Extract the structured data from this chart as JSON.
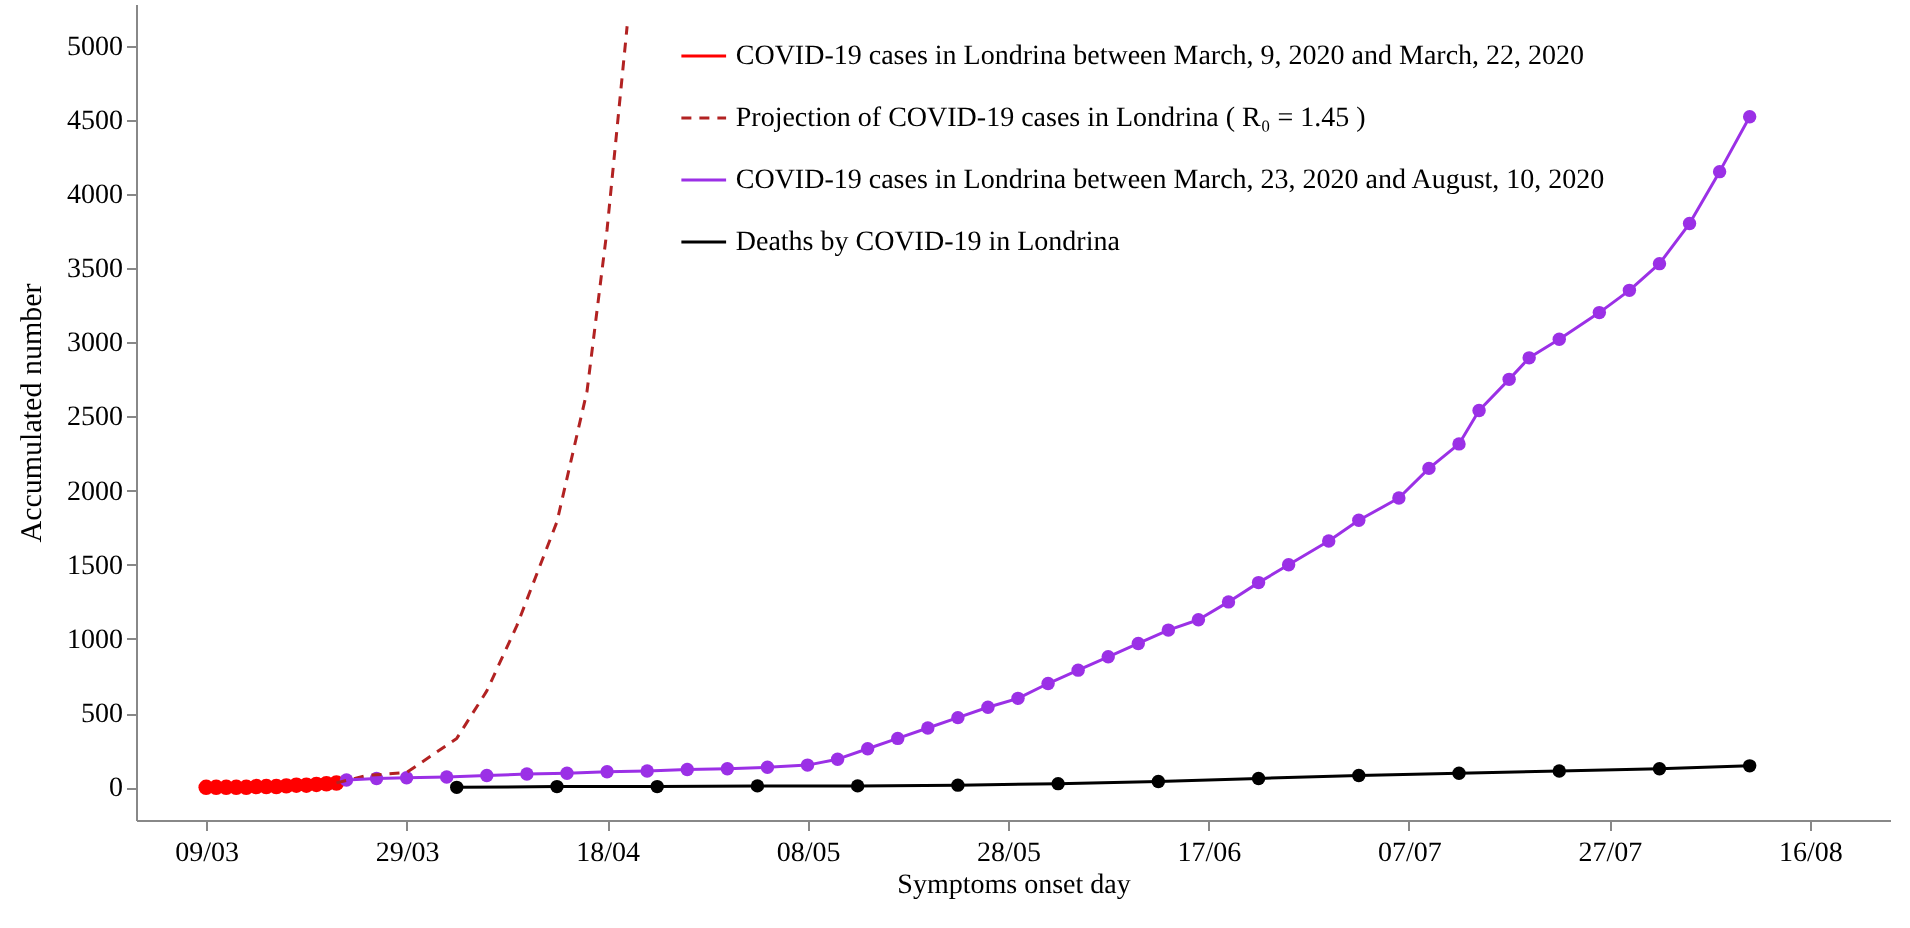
{
  "chart_data": {
    "type": "line",
    "xlabel": "Symptoms onset day",
    "ylabel": "Accumulated number",
    "xlim": [
      "--03-02",
      "--08-24"
    ],
    "xticks": [
      {
        "value": "--03-09",
        "label": "09/03"
      },
      {
        "value": "--03-29",
        "label": "29/03"
      },
      {
        "value": "--04-18",
        "label": "18/04"
      },
      {
        "value": "--05-08",
        "label": "08/05"
      },
      {
        "value": "--05-28",
        "label": "28/05"
      },
      {
        "value": "--06-17",
        "label": "17/06"
      },
      {
        "value": "--07-07",
        "label": "07/07"
      },
      {
        "value": "--07-27",
        "label": "27/07"
      },
      {
        "value": "--08-16",
        "label": "16/08"
      }
    ],
    "ylim": [
      -220,
      5280
    ],
    "yticks": [
      0,
      500,
      1000,
      1500,
      2000,
      2500,
      3000,
      3500,
      4000,
      4500,
      5000
    ],
    "grid": false,
    "legend": "top",
    "series": [
      {
        "name": "COVID-19 cases in Londrina between March, 9, 2020 and March, 22, 2020",
        "type": "scatter",
        "color": "#ff0000",
        "marker": "circle",
        "line_style": "solid",
        "x": [
          "--03-09",
          "--03-10",
          "--03-11",
          "--03-12",
          "--03-13",
          "--03-14",
          "--03-15",
          "--03-16",
          "--03-17",
          "--03-18",
          "--03-19",
          "--03-20",
          "--03-21",
          "--03-22"
        ],
        "values": [
          0,
          0,
          0,
          0,
          0,
          5,
          5,
          5,
          10,
          15,
          15,
          20,
          25,
          30
        ]
      },
      {
        "name": "Projection of COVID-19 cases in Londrina ( R₀ = 1.45 )",
        "color": "#b22222",
        "marker": "none",
        "line_style": "dashed",
        "x": [
          "--03-22",
          "--03-25",
          "--03-29",
          "--04-03",
          "--04-06",
          "--04-09",
          "--04-13",
          "--04-16",
          "--04-18",
          "--04-20"
        ],
        "values": [
          30,
          80,
          100,
          330,
          650,
          1090,
          1790,
          2670,
          3760,
          5130
        ]
      },
      {
        "name": "COVID-19 cases in Londrina between March, 23, 2020 and August, 10, 2020",
        "color": "#9b30e6",
        "marker": "circle",
        "line_style": "solid",
        "x": [
          "--03-23",
          "--03-26",
          "--03-29",
          "--04-02",
          "--04-06",
          "--04-10",
          "--04-14",
          "--04-18",
          "--04-22",
          "--04-26",
          "--04-30",
          "--05-04",
          "--05-08",
          "--05-11",
          "--05-14",
          "--05-17",
          "--05-20",
          "--05-23",
          "--05-26",
          "--05-29",
          "--06-01",
          "--06-04",
          "--06-07",
          "--06-10",
          "--06-13",
          "--06-16",
          "--06-19",
          "--06-22",
          "--06-25",
          "--06-29",
          "--07-02",
          "--07-06",
          "--07-09",
          "--07-12",
          "--07-14",
          "--07-17",
          "--07-19",
          "--07-22",
          "--07-26",
          "--07-29",
          "--08-01",
          "--08-04",
          "--08-07",
          "--08-10"
        ],
        "values": [
          50,
          60,
          65,
          70,
          80,
          90,
          95,
          105,
          110,
          120,
          125,
          135,
          150,
          190,
          260,
          330,
          400,
          470,
          540,
          600,
          700,
          790,
          880,
          970,
          1060,
          1130,
          1250,
          1380,
          1500,
          1660,
          1800,
          1950,
          2150,
          2315,
          2540,
          2750,
          2895,
          3020,
          3200,
          3350,
          3530,
          3800,
          4150,
          4520
        ]
      },
      {
        "name": "Deaths by COVID-19 in Londrina",
        "color": "#000000",
        "marker": "circle",
        "line_style": "solid",
        "x": [
          "--04-03",
          "--04-13",
          "--04-23",
          "--05-03",
          "--05-13",
          "--05-23",
          "--06-02",
          "--06-12",
          "--06-22",
          "--07-02",
          "--07-12",
          "--07-22",
          "--08-01",
          "--08-10"
        ],
        "values": [
          0,
          5,
          5,
          10,
          10,
          15,
          25,
          40,
          60,
          80,
          95,
          110,
          125,
          145
        ]
      }
    ]
  }
}
